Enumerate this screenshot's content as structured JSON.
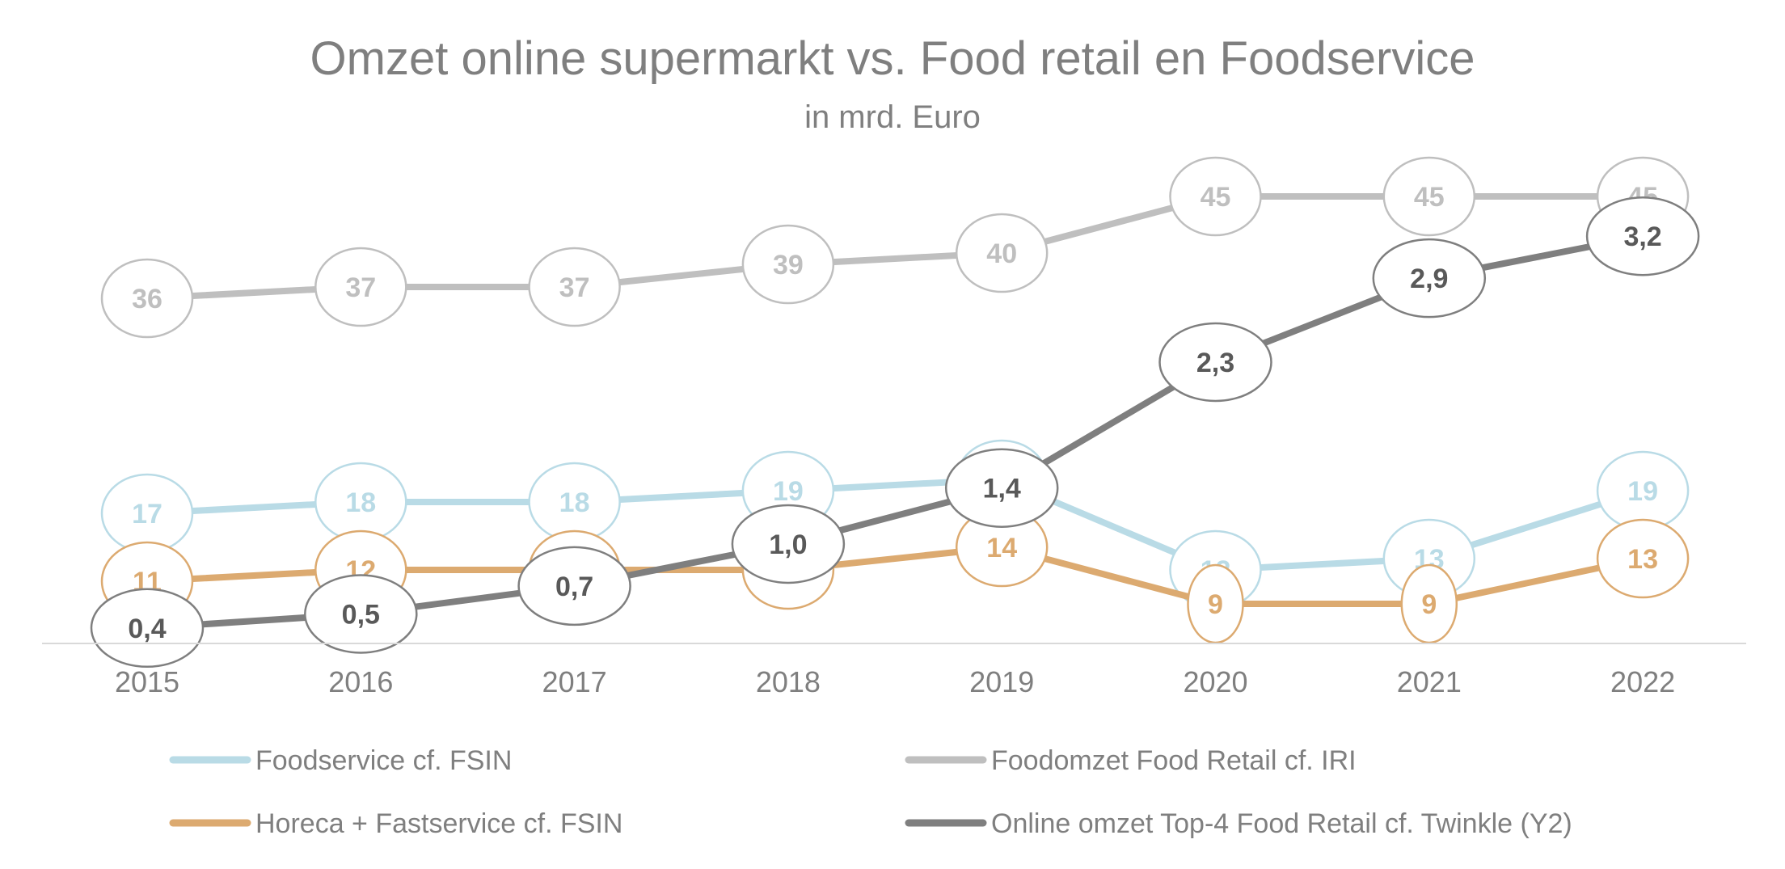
{
  "chart_data": {
    "type": "line",
    "title": "Omzet online supermarkt vs. Food retail en Foodservice",
    "subtitle": "in mrd. Euro",
    "categories": [
      "2015",
      "2016",
      "2017",
      "2018",
      "2019",
      "2020",
      "2021",
      "2022"
    ],
    "xlabel": "",
    "ylabel": "",
    "primary_axis": {
      "ylim": [
        0,
        50
      ],
      "visible": false
    },
    "secondary_axis": {
      "ylim": [
        0,
        3.6
      ],
      "visible": false
    },
    "grid": false,
    "legend_position": "bottom",
    "series": [
      {
        "name": "Foodomzet Food Retail cf. IRI",
        "axis": "primary",
        "color": "#bfbfbf",
        "values": [
          36,
          37,
          37,
          39,
          40,
          45,
          45,
          45
        ],
        "labels": [
          "36",
          "37",
          "37",
          "39",
          "40",
          "45",
          "45",
          "45"
        ]
      },
      {
        "name": "Foodservice cf. FSIN",
        "axis": "primary",
        "color": "#b9dbe6",
        "values": [
          17,
          18,
          18,
          19,
          20,
          12,
          13,
          19
        ],
        "labels": [
          "17",
          "18",
          "18",
          "19",
          "20",
          "12",
          "13",
          "19"
        ]
      },
      {
        "name": "Horeca + Fastservice cf. FSIN",
        "axis": "primary",
        "color": "#dcaa70",
        "values": [
          11,
          12,
          12,
          12,
          14,
          9,
          9,
          13
        ],
        "labels": [
          "11",
          "12",
          "12",
          "12",
          "14",
          "9",
          "9",
          "13"
        ]
      },
      {
        "name": "Online omzet Top-4 Food Retail cf. Twinkle (Y2)",
        "axis": "secondary",
        "color": "#7f7f7f",
        "values": [
          0.4,
          0.5,
          0.7,
          1.0,
          1.4,
          2.3,
          2.9,
          3.2
        ],
        "labels": [
          "0,4",
          "0,5",
          "0,7",
          "1,0",
          "1,4",
          "2,3",
          "2,9",
          "3,2"
        ]
      }
    ],
    "legend": [
      {
        "series": "Foodservice cf. FSIN",
        "color": "#b9dbe6"
      },
      {
        "series": "Foodomzet Food Retail cf. IRI",
        "color": "#bfbfbf"
      },
      {
        "series": "Horeca + Fastservice cf. FSIN",
        "color": "#dcaa70"
      },
      {
        "series": "Online omzet Top-4 Food Retail cf. Twinkle (Y2)",
        "color": "#7f7f7f"
      }
    ]
  }
}
